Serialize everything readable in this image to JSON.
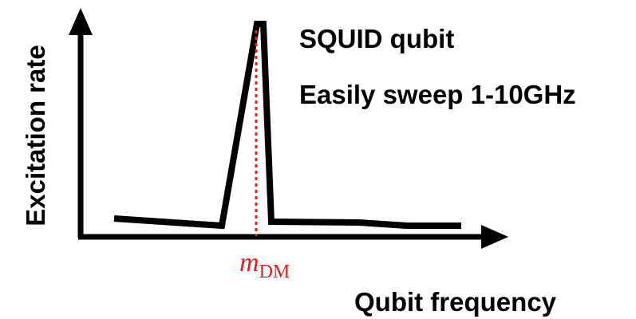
{
  "y_axis_label": "Excitation rate",
  "x_axis_label": "Qubit frequency",
  "annotations": [
    "SQUID qubit",
    "Easily sweep 1-10GHz"
  ],
  "marker": {
    "symbol": "m",
    "subscript": "DM"
  }
}
